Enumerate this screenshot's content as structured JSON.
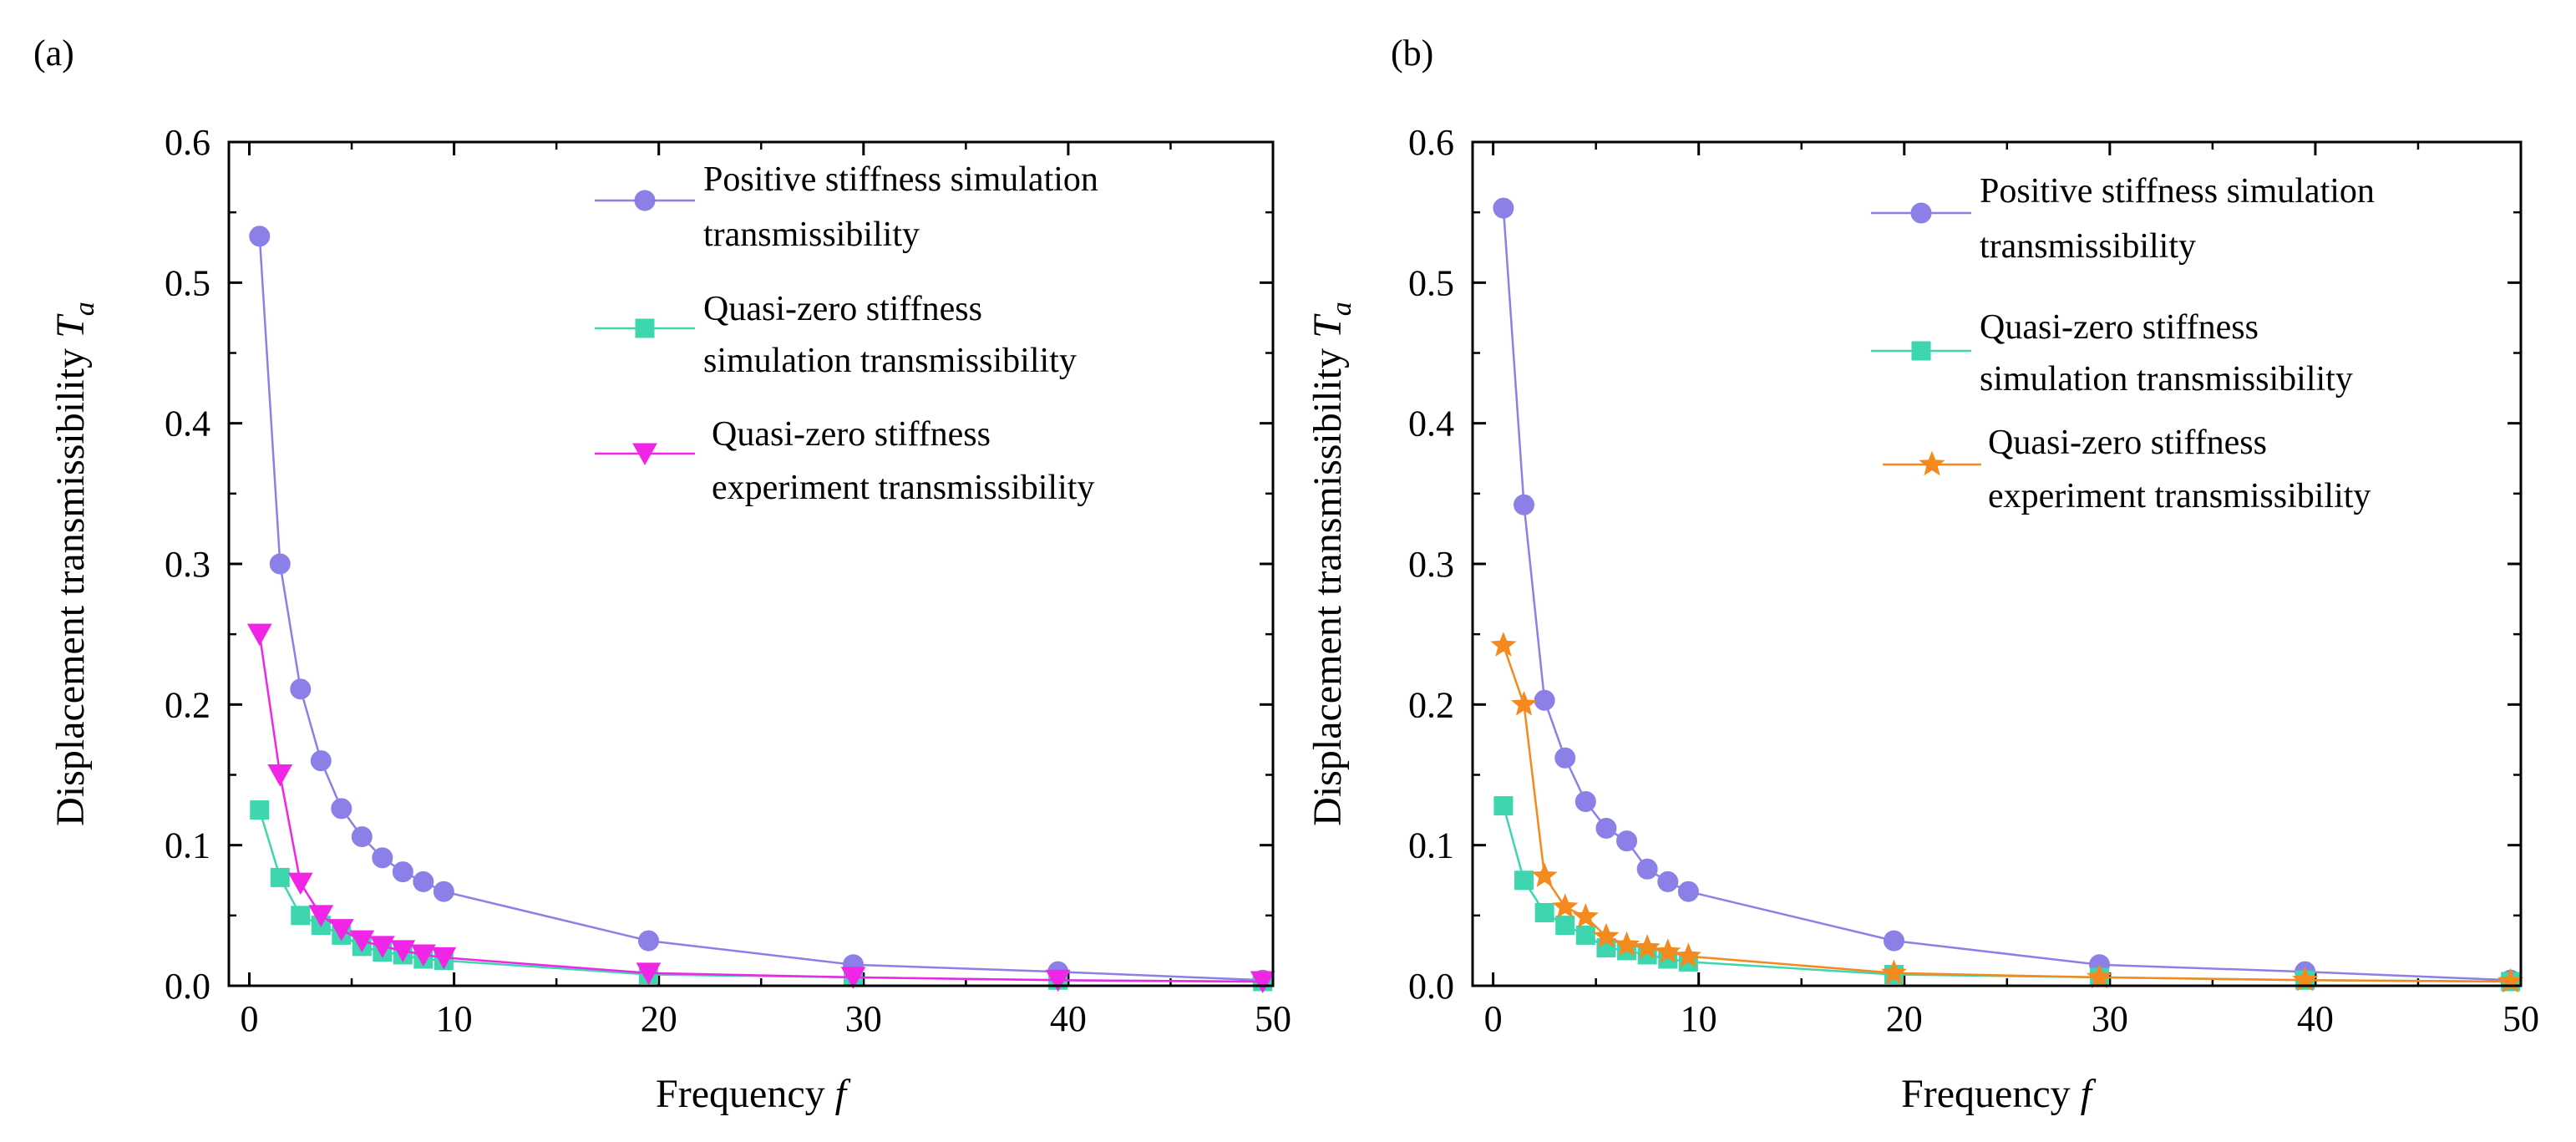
{
  "colors": {
    "positive": "#8B7FE8",
    "qz_sim": "#3DD6AE",
    "qz_exp_a": "#F025E6",
    "qz_exp_b": "#F48A1E"
  },
  "charts": [
    {
      "panel_label": "(a)",
      "x_label_text": "Frequency ",
      "x_label_var": "f",
      "y_label_text": "Displacement transmissibility  ",
      "y_label_var": "T",
      "y_label_sub": "a",
      "legend": [
        {
          "line1": "Positive stiffness simulation",
          "line2": "transmissibility"
        },
        {
          "line1": "Quasi-zero stiffness",
          "line2": "simulation transmissibility"
        },
        {
          "line1": "Quasi-zero stiffness",
          "line2": "experiment transmissibility"
        }
      ]
    },
    {
      "panel_label": "(b)",
      "x_label_text": "Frequency ",
      "x_label_var": "f",
      "y_label_text": "Displacement transmissibility  ",
      "y_label_var": "T",
      "y_label_sub": "a",
      "legend": [
        {
          "line1": "Positive stiffness simulation",
          "line2": "transmissibility"
        },
        {
          "line1": "Quasi-zero stiffness",
          "line2": "simulation transmissibility"
        },
        {
          "line1": "Quasi-zero stiffness",
          "line2": "experiment transmissibility"
        }
      ]
    }
  ],
  "chart_data": [
    {
      "type": "line",
      "title": "(a)",
      "xlabel": "Frequency f",
      "ylabel": "Displacement transmissibility Ta",
      "xlim": [
        -1,
        50
      ],
      "ylim": [
        0,
        0.6
      ],
      "xticks": [
        0,
        10,
        20,
        30,
        40,
        50
      ],
      "yticks": [
        0.0,
        0.1,
        0.2,
        0.3,
        0.4,
        0.5,
        0.6
      ],
      "xtick_labels": [
        "0",
        "10",
        "20",
        "30",
        "40",
        "50"
      ],
      "ytick_labels": [
        "0.0",
        "0.1",
        "0.2",
        "0.3",
        "0.4",
        "0.5",
        "0.6"
      ],
      "legend_position": "top-right",
      "series": [
        {
          "name": "Positive stiffness simulation transmissibility",
          "marker": "circle",
          "color": "#8B7FE8",
          "x": [
            0.5,
            1.5,
            2.5,
            3.5,
            4.5,
            5.5,
            6.5,
            7.5,
            8.5,
            9.5,
            19.5,
            29.5,
            39.5,
            49.5
          ],
          "y": [
            0.533,
            0.3,
            0.211,
            0.16,
            0.126,
            0.106,
            0.091,
            0.081,
            0.074,
            0.067,
            0.032,
            0.015,
            0.01,
            0.004
          ]
        },
        {
          "name": "Quasi-zero stiffness simulation transmissibility",
          "marker": "square",
          "color": "#3DD6AE",
          "x": [
            0.5,
            1.5,
            2.5,
            3.5,
            4.5,
            5.5,
            6.5,
            7.5,
            8.5,
            9.5,
            19.5,
            29.5,
            39.5,
            49.5
          ],
          "y": [
            0.125,
            0.077,
            0.05,
            0.043,
            0.036,
            0.028,
            0.024,
            0.022,
            0.019,
            0.018,
            0.008,
            0.006,
            0.004,
            0.003
          ]
        },
        {
          "name": "Quasi-zero stiffness experiment transmissibility",
          "marker": "triangle-down",
          "color": "#F025E6",
          "x": [
            0.5,
            1.5,
            2.5,
            3.5,
            4.5,
            5.5,
            6.5,
            7.5,
            8.5,
            9.5,
            19.5,
            29.5,
            39.5,
            49.5
          ],
          "y": [
            0.25,
            0.15,
            0.073,
            0.05,
            0.04,
            0.032,
            0.028,
            0.025,
            0.022,
            0.02,
            0.009,
            0.006,
            0.004,
            0.003
          ]
        }
      ]
    },
    {
      "type": "line",
      "title": "(b)",
      "xlabel": "Frequency f",
      "ylabel": "Displacement transmissibility Ta",
      "xlim": [
        -1,
        50
      ],
      "ylim": [
        0,
        0.6
      ],
      "xticks": [
        0,
        10,
        20,
        30,
        40,
        50
      ],
      "yticks": [
        0.0,
        0.1,
        0.2,
        0.3,
        0.4,
        0.5,
        0.6
      ],
      "xtick_labels": [
        "0",
        "10",
        "20",
        "30",
        "40",
        "50"
      ],
      "ytick_labels": [
        "0.0",
        "0.1",
        "0.2",
        "0.3",
        "0.4",
        "0.5",
        "0.6"
      ],
      "legend_position": "top-right",
      "series": [
        {
          "name": "Positive stiffness simulation transmissibility",
          "marker": "circle",
          "color": "#8B7FE8",
          "x": [
            0.5,
            1.5,
            2.5,
            3.5,
            4.5,
            5.5,
            6.5,
            7.5,
            8.5,
            9.5,
            19.5,
            29.5,
            39.5,
            49.5
          ],
          "y": [
            0.553,
            0.342,
            0.203,
            0.162,
            0.131,
            0.112,
            0.103,
            0.083,
            0.074,
            0.067,
            0.032,
            0.015,
            0.01,
            0.004
          ]
        },
        {
          "name": "Quasi-zero stiffness simulation transmissibility",
          "marker": "square",
          "color": "#3DD6AE",
          "x": [
            0.5,
            1.5,
            2.5,
            3.5,
            4.5,
            5.5,
            6.5,
            7.5,
            8.5,
            9.5,
            19.5,
            29.5,
            39.5,
            49.5
          ],
          "y": [
            0.128,
            0.075,
            0.052,
            0.043,
            0.036,
            0.027,
            0.025,
            0.022,
            0.019,
            0.017,
            0.008,
            0.006,
            0.004,
            0.003
          ]
        },
        {
          "name": "Quasi-zero stiffness experiment transmissibility",
          "marker": "star",
          "color": "#F48A1E",
          "x": [
            0.5,
            1.5,
            2.5,
            3.5,
            4.5,
            5.5,
            6.5,
            7.5,
            8.5,
            9.5,
            19.5,
            29.5,
            39.5,
            49.5
          ],
          "y": [
            0.242,
            0.2,
            0.078,
            0.056,
            0.049,
            0.035,
            0.029,
            0.027,
            0.024,
            0.021,
            0.009,
            0.006,
            0.004,
            0.003
          ]
        }
      ]
    }
  ]
}
